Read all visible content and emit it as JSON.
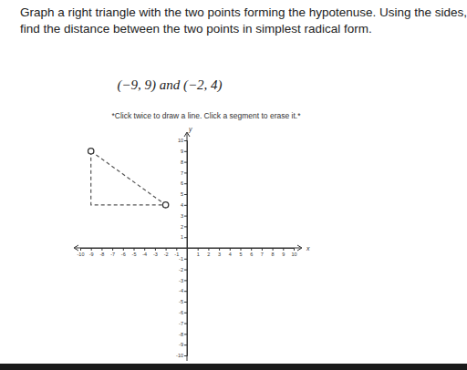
{
  "chart_data": {
    "type": "scatter",
    "title": [
      "Graph a right triangle with the two points forming the hypotenuse. Using the sides,",
      "find the distance between the two points in simplest radical form."
    ],
    "subtitle": "(−9, 9) and (−2, 4)",
    "annotations": [
      "*Click twice to draw a line. Click a segment to erase it.*"
    ],
    "xlabel": "x",
    "ylabel": "y",
    "series": [
      {
        "x": [
          -9,
          -9,
          -2
        ],
        "values": [
          9,
          4,
          4
        ],
        "color": "#555555",
        "line_style": "dashed",
        "marker": "none"
      },
      {
        "x": [
          -9,
          -2
        ],
        "values": [
          9,
          4
        ],
        "color": "#555555",
        "line_style": "dashed",
        "marker": "circle"
      }
    ],
    "xlim": [
      -10,
      10
    ],
    "ylim": [
      -10,
      10
    ],
    "xticks": [
      -10,
      -9,
      -8,
      -7,
      -6,
      -5,
      -4,
      -3,
      -2,
      -1,
      1,
      2,
      3,
      4,
      5,
      6,
      7,
      8,
      9,
      10
    ],
    "yticks": [
      -10,
      -9,
      -8,
      -7,
      -6,
      -5,
      -4,
      -3,
      -2,
      -1,
      1,
      2,
      3,
      4,
      5,
      6,
      7,
      8,
      9,
      10
    ],
    "grid": false
  }
}
